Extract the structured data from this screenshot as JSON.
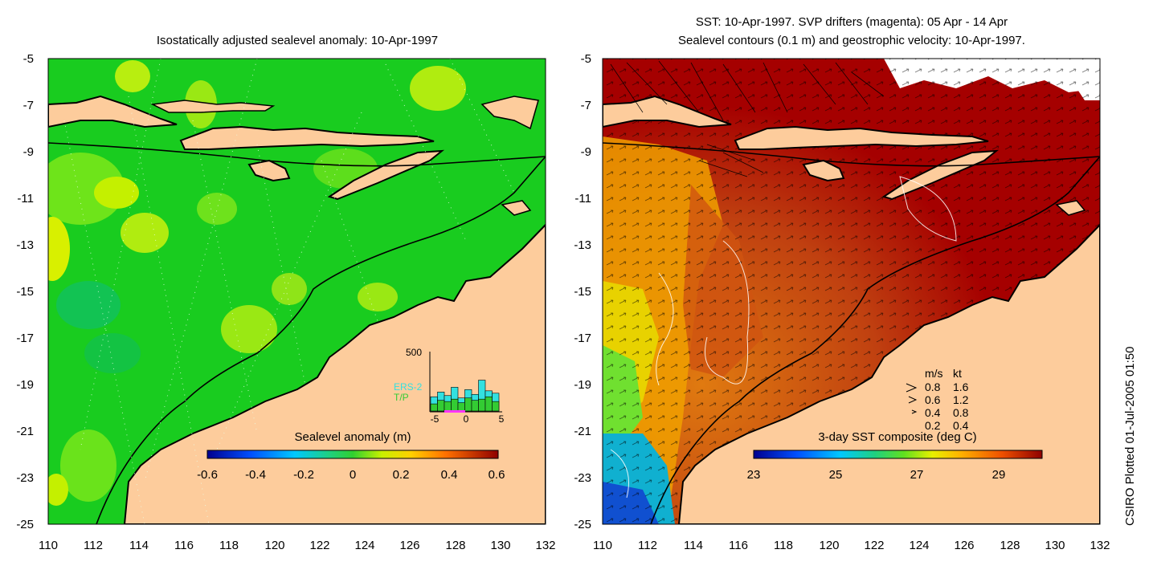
{
  "left_panel": {
    "title": "Isostatically adjusted sealevel anomaly: 10-Apr-1997",
    "y_ticks": [
      "-5",
      "-7",
      "-9",
      "-11",
      "-13",
      "-15",
      "-17",
      "-19",
      "-21",
      "-23",
      "-25"
    ],
    "x_ticks": [
      "110",
      "112",
      "114",
      "116",
      "118",
      "120",
      "122",
      "124",
      "126",
      "128",
      "130",
      "132"
    ],
    "colorbar": {
      "label": "Sealevel anomaly (m)",
      "ticks": [
        "-0.6",
        "-0.4",
        "-0.2",
        "0",
        "0.2",
        "0.4",
        "0.6"
      ]
    },
    "histogram": {
      "y_max_label": "500",
      "legend": [
        "ERS-2",
        "T/P"
      ],
      "x_ticks": [
        "-5",
        "0",
        "5"
      ],
      "ers2_counts": [
        120,
        160,
        130,
        200,
        110,
        180,
        140,
        260,
        170,
        150
      ],
      "tp_counts": [
        60,
        90,
        80,
        100,
        70,
        110,
        90,
        100,
        120,
        80
      ],
      "colors": {
        "ers2": "#33e0e0",
        "tp": "#33cc33",
        "window": "#ff33ff"
      }
    }
  },
  "right_panel": {
    "title_line1": "SST: 10-Apr-1997. SVP drifters (magenta): 05 Apr - 14 Apr",
    "title_line2": "Sealevel contours (0.1 m) and geostrophic velocity: 10-Apr-1997.",
    "y_ticks": [
      "-5",
      "-7",
      "-9",
      "-11",
      "-13",
      "-15",
      "-17",
      "-19",
      "-21",
      "-23",
      "-25"
    ],
    "x_ticks": [
      "110",
      "112",
      "114",
      "116",
      "118",
      "120",
      "122",
      "124",
      "126",
      "128",
      "130",
      "132"
    ],
    "velocity_legend": {
      "header_ms": "m/s",
      "header_kt": "kt",
      "rows": [
        {
          "ms": "0.8",
          "kt": "1.6"
        },
        {
          "ms": "0.6",
          "kt": "1.2"
        },
        {
          "ms": "0.4",
          "kt": "0.8"
        },
        {
          "ms": "0.2",
          "kt": "0.4"
        }
      ]
    },
    "colorbar": {
      "label": "3-day SST composite (deg C)",
      "ticks": [
        "23",
        "25",
        "27",
        "29"
      ]
    }
  },
  "side_label": "CSIRO Plotted 01-Jul-2005 01:50",
  "colors": {
    "land": "#fdcc9c",
    "sla_ocean": "#19cc1f",
    "sst_warm": "#a50000",
    "coast": "#000000"
  }
}
